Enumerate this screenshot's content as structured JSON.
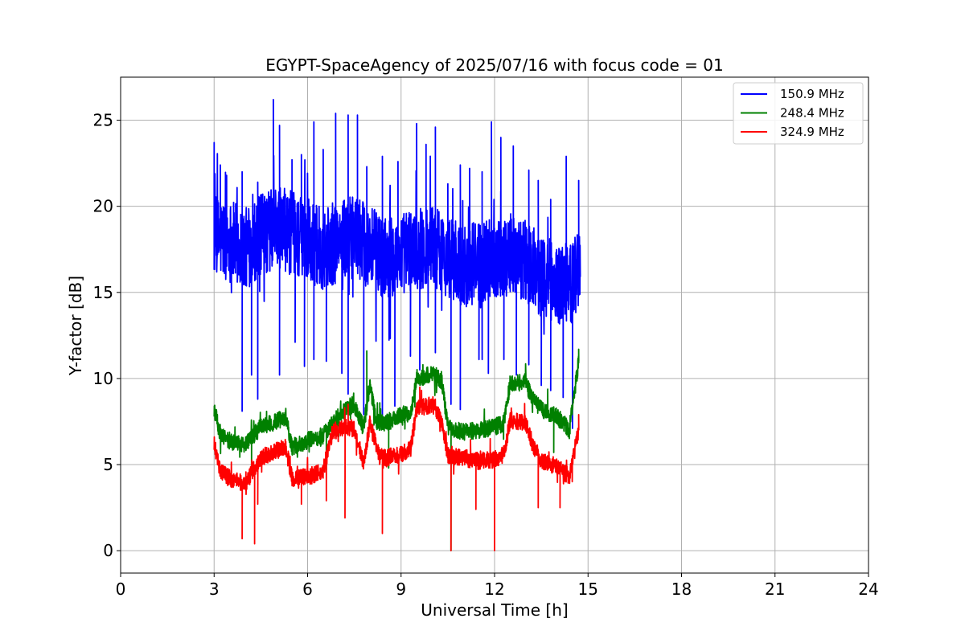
{
  "chart_data": {
    "type": "line",
    "title": "EGYPT-SpaceAgency of 2025/07/16 with focus code = 01",
    "xlabel": "Universal Time [h]",
    "ylabel": "Y-factor [dB]",
    "xlim": [
      0,
      24
    ],
    "ylim": [
      -1.3,
      27.5
    ],
    "xticks": [
      0,
      3,
      6,
      9,
      12,
      15,
      18,
      21,
      24
    ],
    "yticks": [
      0,
      5,
      10,
      15,
      20,
      25
    ],
    "grid": true,
    "legend_position": "top-right",
    "series": [
      {
        "name": "150.9 MHz",
        "color": "#0000ff",
        "noise": 2.4,
        "base": [
          [
            3.0,
            18.2
          ],
          [
            3.5,
            18.0
          ],
          [
            4.0,
            17.5
          ],
          [
            4.5,
            18.3
          ],
          [
            5.0,
            18.8
          ],
          [
            5.5,
            18.5
          ],
          [
            6.0,
            18.0
          ],
          [
            6.5,
            17.5
          ],
          [
            7.0,
            18.0
          ],
          [
            7.5,
            18.2
          ],
          [
            8.0,
            17.6
          ],
          [
            8.5,
            17.0
          ],
          [
            9.0,
            17.3
          ],
          [
            9.5,
            17.5
          ],
          [
            10.0,
            17.8
          ],
          [
            10.5,
            17.0
          ],
          [
            11.0,
            16.5
          ],
          [
            11.5,
            16.8
          ],
          [
            12.0,
            17.0
          ],
          [
            12.5,
            17.2
          ],
          [
            13.0,
            16.8
          ],
          [
            13.5,
            16.0
          ],
          [
            14.0,
            15.5
          ],
          [
            14.5,
            15.5
          ],
          [
            14.75,
            17.0
          ]
        ],
        "peaks": [
          [
            3.0,
            23.7
          ],
          [
            3.2,
            22.4
          ],
          [
            3.4,
            21.8
          ],
          [
            3.9,
            22.0
          ],
          [
            4.4,
            21.4
          ],
          [
            4.9,
            26.2
          ],
          [
            5.1,
            24.7
          ],
          [
            5.5,
            22.7
          ],
          [
            5.8,
            23.0
          ],
          [
            6.2,
            24.9
          ],
          [
            6.5,
            23.3
          ],
          [
            6.9,
            25.4
          ],
          [
            7.3,
            25.3
          ],
          [
            7.6,
            25.3
          ],
          [
            7.9,
            22.3
          ],
          [
            8.4,
            22.9
          ],
          [
            8.9,
            22.6
          ],
          [
            9.5,
            24.8
          ],
          [
            9.8,
            23.6
          ],
          [
            10.1,
            24.6
          ],
          [
            10.5,
            21.3
          ],
          [
            10.9,
            22.4
          ],
          [
            11.2,
            22.2
          ],
          [
            11.6,
            22.0
          ],
          [
            11.9,
            24.9
          ],
          [
            12.2,
            24.0
          ],
          [
            12.6,
            23.5
          ],
          [
            13.1,
            22.1
          ],
          [
            13.4,
            21.5
          ],
          [
            13.8,
            20.4
          ],
          [
            14.3,
            22.9
          ],
          [
            14.7,
            21.5
          ]
        ],
        "dips": [
          [
            3.9,
            8.1
          ],
          [
            4.2,
            10.2
          ],
          [
            4.4,
            8.8
          ],
          [
            5.1,
            10.2
          ],
          [
            5.6,
            12.1
          ],
          [
            5.9,
            10.7
          ],
          [
            6.2,
            11.1
          ],
          [
            6.6,
            11.0
          ],
          [
            7.1,
            10.3
          ],
          [
            7.3,
            9.1
          ],
          [
            7.8,
            7.9
          ],
          [
            8.4,
            7.3
          ],
          [
            8.8,
            8.4
          ],
          [
            9.3,
            11.3
          ],
          [
            9.6,
            10.5
          ],
          [
            10.1,
            11.5
          ],
          [
            10.6,
            8.5
          ],
          [
            10.9,
            8.2
          ],
          [
            11.5,
            11.1
          ],
          [
            11.8,
            10.3
          ],
          [
            12.3,
            11.1
          ],
          [
            12.7,
            10.2
          ],
          [
            13.1,
            10.8
          ],
          [
            13.5,
            9.6
          ],
          [
            13.8,
            9.3
          ],
          [
            14.2,
            8.9
          ],
          [
            14.5,
            7.1
          ]
        ]
      },
      {
        "name": "248.4 MHz",
        "color": "#008000",
        "noise": 0.5,
        "base": [
          [
            3.0,
            8.2
          ],
          [
            3.2,
            6.8
          ],
          [
            3.5,
            6.3
          ],
          [
            4.0,
            6.1
          ],
          [
            4.5,
            7.2
          ],
          [
            5.0,
            7.5
          ],
          [
            5.3,
            7.8
          ],
          [
            5.5,
            6.0
          ],
          [
            6.0,
            6.4
          ],
          [
            6.5,
            6.7
          ],
          [
            7.0,
            7.8
          ],
          [
            7.3,
            8.3
          ],
          [
            7.5,
            8.5
          ],
          [
            7.8,
            7.1
          ],
          [
            8.0,
            9.7
          ],
          [
            8.2,
            7.5
          ],
          [
            8.5,
            7.4
          ],
          [
            9.0,
            7.9
          ],
          [
            9.3,
            8.0
          ],
          [
            9.5,
            9.9
          ],
          [
            10.0,
            10.3
          ],
          [
            10.3,
            9.9
          ],
          [
            10.5,
            7.2
          ],
          [
            11.0,
            6.9
          ],
          [
            11.5,
            7.0
          ],
          [
            12.0,
            7.2
          ],
          [
            12.3,
            7.4
          ],
          [
            12.5,
            9.7
          ],
          [
            13.0,
            9.8
          ],
          [
            13.2,
            8.8
          ],
          [
            13.5,
            8.2
          ],
          [
            14.0,
            7.8
          ],
          [
            14.4,
            7.0
          ],
          [
            14.7,
            11.0
          ]
        ],
        "peaks": [
          [
            7.9,
            11.6
          ],
          [
            9.7,
            10.8
          ],
          [
            12.8,
            10.1
          ],
          [
            14.7,
            11.7
          ]
        ],
        "dips": [
          [
            4.2,
            4.4
          ],
          [
            6.6,
            4.7
          ],
          [
            8.6,
            4.8
          ],
          [
            10.6,
            0.0
          ],
          [
            13.9,
            5.7
          ]
        ]
      },
      {
        "name": "324.9 MHz",
        "color": "#ff0000",
        "noise": 0.5,
        "base": [
          [
            3.0,
            6.2
          ],
          [
            3.2,
            4.6
          ],
          [
            3.5,
            4.2
          ],
          [
            4.0,
            3.9
          ],
          [
            4.5,
            5.4
          ],
          [
            5.0,
            5.8
          ],
          [
            5.3,
            6.0
          ],
          [
            5.5,
            4.2
          ],
          [
            6.0,
            4.3
          ],
          [
            6.5,
            4.6
          ],
          [
            6.8,
            6.9
          ],
          [
            7.2,
            7.2
          ],
          [
            7.5,
            7.1
          ],
          [
            7.8,
            5.0
          ],
          [
            8.0,
            7.4
          ],
          [
            8.3,
            5.5
          ],
          [
            8.5,
            5.4
          ],
          [
            9.0,
            5.6
          ],
          [
            9.3,
            5.9
          ],
          [
            9.5,
            8.2
          ],
          [
            10.0,
            8.5
          ],
          [
            10.3,
            7.6
          ],
          [
            10.5,
            5.5
          ],
          [
            11.0,
            5.4
          ],
          [
            11.5,
            5.2
          ],
          [
            12.0,
            5.3
          ],
          [
            12.3,
            5.6
          ],
          [
            12.5,
            7.6
          ],
          [
            13.0,
            7.4
          ],
          [
            13.2,
            6.3
          ],
          [
            13.5,
            5.2
          ],
          [
            14.0,
            4.9
          ],
          [
            14.4,
            4.3
          ],
          [
            14.7,
            7.0
          ]
        ],
        "peaks": [
          [
            7.3,
            8.5
          ],
          [
            9.6,
            9.5
          ],
          [
            12.8,
            7.9
          ],
          [
            14.7,
            7.9
          ]
        ],
        "dips": [
          [
            3.9,
            0.7
          ],
          [
            4.3,
            0.4
          ],
          [
            4.4,
            2.7
          ],
          [
            5.8,
            2.7
          ],
          [
            6.6,
            2.9
          ],
          [
            7.2,
            1.9
          ],
          [
            8.4,
            1.0
          ],
          [
            10.6,
            0.0
          ],
          [
            11.4,
            2.4
          ],
          [
            12.0,
            0.0
          ],
          [
            13.4,
            2.5
          ],
          [
            14.1,
            2.5
          ]
        ]
      }
    ]
  }
}
